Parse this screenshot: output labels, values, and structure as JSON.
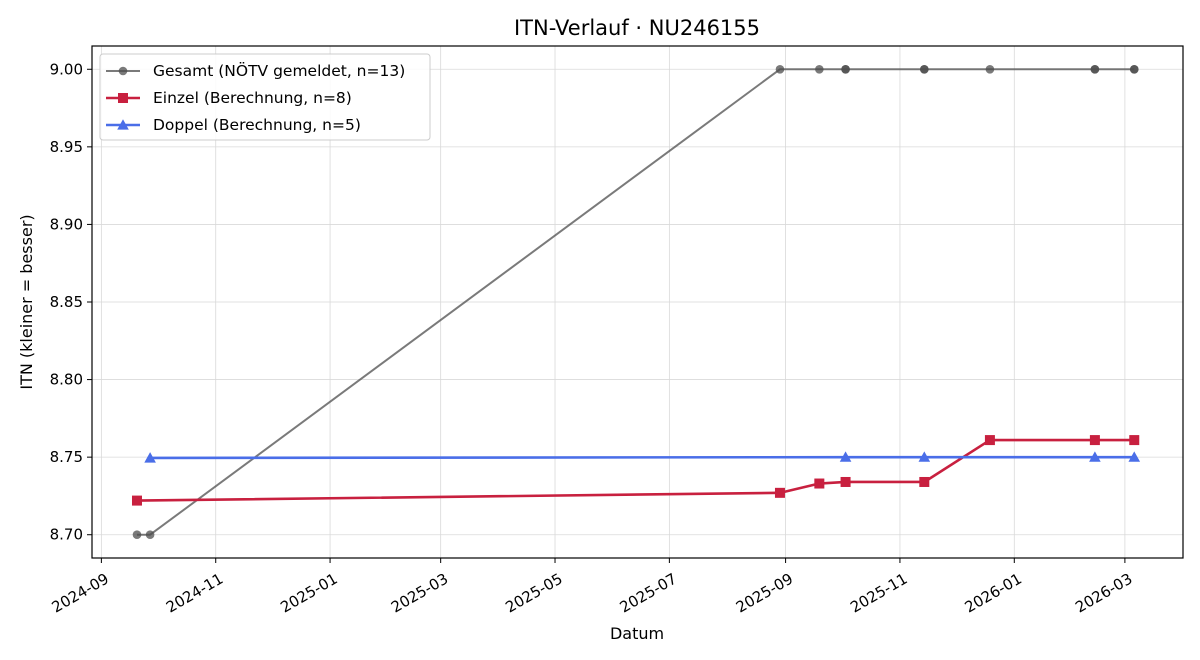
{
  "chart_data": {
    "type": "line",
    "title": "ITN-Verlauf · NU246155",
    "xlabel": "Datum",
    "ylabel": "ITN  (kleiner = besser)",
    "x_type": "date",
    "xlim": [
      "2024-08-27",
      "2026-04-01"
    ],
    "ylim": [
      8.685,
      9.015
    ],
    "x_ticks": [
      {
        "date": "2024-09-01",
        "label": "2024-09"
      },
      {
        "date": "2024-11-01",
        "label": "2024-11"
      },
      {
        "date": "2025-01-01",
        "label": "2025-01"
      },
      {
        "date": "2025-03-01",
        "label": "2025-03"
      },
      {
        "date": "2025-05-01",
        "label": "2025-05"
      },
      {
        "date": "2025-07-01",
        "label": "2025-07"
      },
      {
        "date": "2025-09-01",
        "label": "2025-09"
      },
      {
        "date": "2025-11-01",
        "label": "2025-11"
      },
      {
        "date": "2026-01-01",
        "label": "2026-01"
      },
      {
        "date": "2026-03-01",
        "label": "2026-03"
      }
    ],
    "y_ticks": [
      {
        "value": 8.7,
        "label": "8.70"
      },
      {
        "value": 8.75,
        "label": "8.75"
      },
      {
        "value": 8.8,
        "label": "8.80"
      },
      {
        "value": 8.85,
        "label": "8.85"
      },
      {
        "value": 8.9,
        "label": "8.90"
      },
      {
        "value": 8.95,
        "label": "8.95"
      },
      {
        "value": 9.0,
        "label": "9.00"
      }
    ],
    "grid": true,
    "legend_position": "top-left",
    "series": [
      {
        "name": "Gesamt (NÖTV gemeldet, n=13)",
        "color": "#4d4d4d",
        "marker": "circle",
        "opacity": 0.75,
        "points": [
          {
            "x": "2024-09-20",
            "y": 8.7
          },
          {
            "x": "2024-09-27",
            "y": 8.7
          },
          {
            "x": "2025-08-29",
            "y": 9.0
          },
          {
            "x": "2025-09-19",
            "y": 9.0
          },
          {
            "x": "2025-10-03",
            "y": 9.0
          },
          {
            "x": "2025-10-03",
            "y": 9.0
          },
          {
            "x": "2025-11-14",
            "y": 9.0
          },
          {
            "x": "2025-11-14",
            "y": 9.0
          },
          {
            "x": "2025-12-19",
            "y": 9.0
          },
          {
            "x": "2026-02-13",
            "y": 9.0
          },
          {
            "x": "2026-02-13",
            "y": 9.0
          },
          {
            "x": "2026-03-06",
            "y": 9.0
          },
          {
            "x": "2026-03-06",
            "y": 9.0
          }
        ]
      },
      {
        "name": "Einzel (Berechnung, n=8)",
        "color": "#c8203f",
        "marker": "square",
        "opacity": 1,
        "points": [
          {
            "x": "2024-09-20",
            "y": 8.722
          },
          {
            "x": "2025-08-29",
            "y": 8.727
          },
          {
            "x": "2025-09-19",
            "y": 8.733
          },
          {
            "x": "2025-10-03",
            "y": 8.734
          },
          {
            "x": "2025-11-14",
            "y": 8.734
          },
          {
            "x": "2025-12-19",
            "y": 8.761
          },
          {
            "x": "2026-02-13",
            "y": 8.761
          },
          {
            "x": "2026-03-06",
            "y": 8.761
          }
        ]
      },
      {
        "name": "Doppel (Berechnung, n=5)",
        "color": "#4a6ee8",
        "marker": "triangle",
        "opacity": 1,
        "points": [
          {
            "x": "2024-09-27",
            "y": 8.7495
          },
          {
            "x": "2025-10-03",
            "y": 8.75
          },
          {
            "x": "2025-11-14",
            "y": 8.75
          },
          {
            "x": "2026-02-13",
            "y": 8.75
          },
          {
            "x": "2026-03-06",
            "y": 8.75
          }
        ]
      }
    ]
  }
}
